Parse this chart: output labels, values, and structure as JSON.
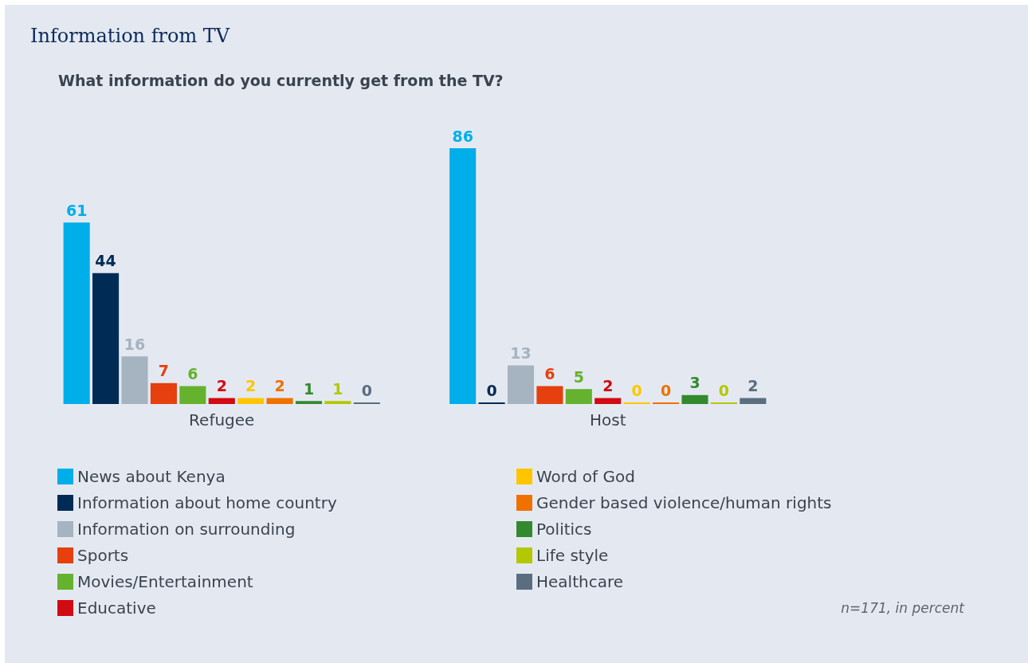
{
  "chart_data": {
    "type": "bar",
    "title": "Information from TV",
    "subtitle": "What information do you currently get from the TV?",
    "categories": [
      "Refugee",
      "Host"
    ],
    "data_labels": true,
    "legend": "bottom",
    "annotations": [
      "n=171, in percent"
    ],
    "series": [
      {
        "name": "News about Kenya",
        "color": "#00aeea",
        "values": [
          61,
          86
        ]
      },
      {
        "name": "Information about home country",
        "color": "#002b55",
        "values": [
          44,
          0
        ]
      },
      {
        "name": "Information on surrounding",
        "color": "#a6b3c0",
        "values": [
          16,
          13
        ]
      },
      {
        "name": "Sports",
        "color": "#e5400e",
        "values": [
          7,
          6
        ]
      },
      {
        "name": "Movies/Entertainment",
        "color": "#64b22e",
        "values": [
          6,
          5
        ]
      },
      {
        "name": "Educative",
        "color": "#d20a11",
        "values": [
          2,
          2
        ]
      },
      {
        "name": "Word of God",
        "color": "#ffc600",
        "values": [
          2,
          0
        ]
      },
      {
        "name": "Gender based violence/human rights",
        "color": "#f07000",
        "values": [
          2,
          0
        ]
      },
      {
        "name": "Politics",
        "color": "#338a2e",
        "values": [
          1,
          3
        ]
      },
      {
        "name": "Life style",
        "color": "#b3c800",
        "values": [
          1,
          0
        ]
      },
      {
        "name": "Healthcare",
        "color": "#5a6e80",
        "values": [
          0,
          2
        ]
      }
    ]
  }
}
